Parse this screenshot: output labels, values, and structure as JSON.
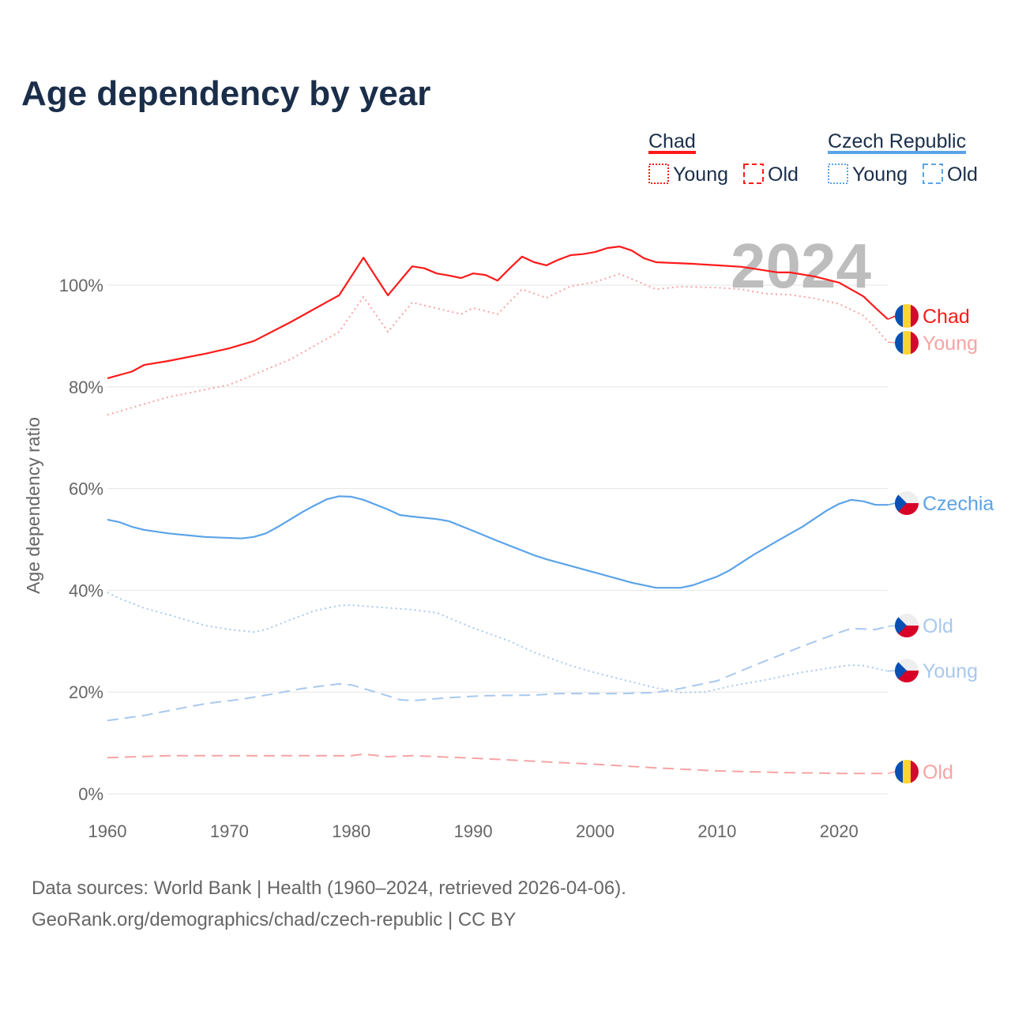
{
  "title": "Age dependency by year",
  "legend": {
    "groups": [
      {
        "name": "Chad",
        "color": "#ff1a1a",
        "items": [
          "Young",
          "Old"
        ]
      },
      {
        "name": "Czech Republic",
        "color": "#5ba3e8",
        "items": [
          "Young",
          "Old"
        ]
      }
    ]
  },
  "year_watermark": "2024",
  "source_line1": "Data sources: World Bank | Health (1960–2024, retrieved 2026-04-06).",
  "source_line2": "GeoRank.org/demographics/chad/czech-republic | CC BY",
  "chart_data": {
    "type": "line",
    "title": "Age dependency by year",
    "xlabel": "",
    "ylabel": "Age dependency ratio",
    "xlim": [
      1960,
      2024
    ],
    "ylim": [
      0,
      110
    ],
    "x_ticks": [
      "1960",
      "1970",
      "1980",
      "1990",
      "2000",
      "2010",
      "2020"
    ],
    "y_ticks": [
      "0%",
      "20%",
      "40%",
      "60%",
      "80%",
      "100%"
    ],
    "y_tick_values": [
      0,
      20,
      40,
      60,
      80,
      100
    ],
    "grid": true,
    "legend_position": "top-right",
    "series": [
      {
        "name": "Chad",
        "end_label": "Chad",
        "country": "chad",
        "style": "solid",
        "color": "#ff1a1a",
        "points": [
          [
            1960,
            81.7
          ],
          [
            1962,
            83
          ],
          [
            1963,
            84.3
          ],
          [
            1965,
            85.1
          ],
          [
            1968,
            86.5
          ],
          [
            1970,
            87.6
          ],
          [
            1972,
            89
          ],
          [
            1975,
            92.7
          ],
          [
            1978,
            96.7
          ],
          [
            1979,
            98
          ],
          [
            1981,
            105.4
          ],
          [
            1982,
            101.7
          ],
          [
            1983,
            98
          ],
          [
            1985,
            103.7
          ],
          [
            1986,
            103.3
          ],
          [
            1987,
            102.3
          ],
          [
            1988,
            101.9
          ],
          [
            1989,
            101.4
          ],
          [
            1990,
            102.3
          ],
          [
            1991,
            102
          ],
          [
            1992,
            100.9
          ],
          [
            1993,
            103.3
          ],
          [
            1994,
            105.6
          ],
          [
            1995,
            104.5
          ],
          [
            1996,
            103.9
          ],
          [
            1997,
            105
          ],
          [
            1998,
            105.9
          ],
          [
            1999,
            106.1
          ],
          [
            2000,
            106.5
          ],
          [
            2001,
            107.3
          ],
          [
            2002,
            107.6
          ],
          [
            2003,
            106.8
          ],
          [
            2004,
            105.3
          ],
          [
            2005,
            104.5
          ],
          [
            2008,
            104.2
          ],
          [
            2010,
            103.9
          ],
          [
            2012,
            103.6
          ],
          [
            2015,
            102.5
          ],
          [
            2016,
            102.5
          ],
          [
            2018,
            101.7
          ],
          [
            2020,
            100.5
          ],
          [
            2022,
            97.8
          ],
          [
            2023,
            95.5
          ],
          [
            2024,
            93.3
          ]
        ]
      },
      {
        "name": "Chad Young",
        "end_label": "Young",
        "country": "chad",
        "style": "dotted",
        "color": "#f7a3a3",
        "points": [
          [
            1960,
            74.5
          ],
          [
            1965,
            78
          ],
          [
            1970,
            80.4
          ],
          [
            1975,
            85.4
          ],
          [
            1979,
            90.8
          ],
          [
            1981,
            97.7
          ],
          [
            1983,
            90.8
          ],
          [
            1985,
            96.6
          ],
          [
            1989,
            94.3
          ],
          [
            1990,
            95.5
          ],
          [
            1992,
            94.3
          ],
          [
            1994,
            99.2
          ],
          [
            1996,
            97.5
          ],
          [
            1998,
            99.8
          ],
          [
            2000,
            100.6
          ],
          [
            2002,
            102.2
          ],
          [
            2004,
            100.2
          ],
          [
            2005,
            99.2
          ],
          [
            2007,
            99.7
          ],
          [
            2010,
            99.5
          ],
          [
            2012,
            99.2
          ],
          [
            2014,
            98.3
          ],
          [
            2016,
            98.1
          ],
          [
            2018,
            97.4
          ],
          [
            2020,
            96.3
          ],
          [
            2022,
            94
          ],
          [
            2023,
            91.6
          ],
          [
            2024,
            88.8
          ]
        ]
      },
      {
        "name": "Chad Old",
        "end_label": "Old",
        "country": "chad",
        "style": "dashed",
        "color": "#f7a3a3",
        "points": [
          [
            1960,
            7.1
          ],
          [
            1965,
            7.5
          ],
          [
            1980,
            7.5
          ],
          [
            1981,
            7.8
          ],
          [
            1983,
            7.3
          ],
          [
            1985,
            7.5
          ],
          [
            1990,
            7
          ],
          [
            1995,
            6.4
          ],
          [
            2000,
            5.8
          ],
          [
            2005,
            5.1
          ],
          [
            2010,
            4.5
          ],
          [
            2015,
            4.2
          ],
          [
            2020,
            4
          ],
          [
            2024,
            4
          ]
        ]
      },
      {
        "name": "Czechia",
        "end_label": "Czechia",
        "country": "czech",
        "style": "solid",
        "color": "#5ba3e8",
        "points": [
          [
            1960,
            53.9
          ],
          [
            1961,
            53.4
          ],
          [
            1962,
            52.5
          ],
          [
            1963,
            51.9
          ],
          [
            1965,
            51.2
          ],
          [
            1968,
            50.5
          ],
          [
            1971,
            50.2
          ],
          [
            1972,
            50.5
          ],
          [
            1973,
            51.2
          ],
          [
            1974,
            52.5
          ],
          [
            1976,
            55.4
          ],
          [
            1977,
            56.7
          ],
          [
            1978,
            57.9
          ],
          [
            1979,
            58.5
          ],
          [
            1980,
            58.4
          ],
          [
            1981,
            57.8
          ],
          [
            1983,
            55.9
          ],
          [
            1984,
            54.8
          ],
          [
            1985,
            54.5
          ],
          [
            1987,
            54
          ],
          [
            1988,
            53.6
          ],
          [
            1990,
            51.7
          ],
          [
            1992,
            49.7
          ],
          [
            1995,
            46.9
          ],
          [
            1996,
            46.1
          ],
          [
            2000,
            43.5
          ],
          [
            2003,
            41.5
          ],
          [
            2005,
            40.5
          ],
          [
            2007,
            40.5
          ],
          [
            2008,
            41
          ],
          [
            2010,
            42.7
          ],
          [
            2011,
            43.9
          ],
          [
            2013,
            47
          ],
          [
            2015,
            49.8
          ],
          [
            2017,
            52.5
          ],
          [
            2019,
            55.7
          ],
          [
            2020,
            57
          ],
          [
            2021,
            57.8
          ],
          [
            2022,
            57.5
          ],
          [
            2023,
            56.8
          ],
          [
            2024,
            56.8
          ]
        ]
      },
      {
        "name": "Czechia Old",
        "end_label": "Old",
        "country": "czech",
        "style": "dashed",
        "color": "#a8c8ee",
        "points": [
          [
            1960,
            14.4
          ],
          [
            1963,
            15.4
          ],
          [
            1966,
            16.8
          ],
          [
            1968,
            17.7
          ],
          [
            1971,
            18.6
          ],
          [
            1973,
            19.4
          ],
          [
            1976,
            20.7
          ],
          [
            1979,
            21.6
          ],
          [
            1980,
            21.4
          ],
          [
            1982,
            20
          ],
          [
            1984,
            18.5
          ],
          [
            1985,
            18.3
          ],
          [
            1988,
            18.9
          ],
          [
            1991,
            19.3
          ],
          [
            1995,
            19.4
          ],
          [
            1997,
            19.7
          ],
          [
            2002,
            19.7
          ],
          [
            2005,
            19.9
          ],
          [
            2007,
            20.7
          ],
          [
            2010,
            22.2
          ],
          [
            2013,
            25.2
          ],
          [
            2017,
            29
          ],
          [
            2020,
            31.7
          ],
          [
            2021,
            32.5
          ],
          [
            2023,
            32.3
          ],
          [
            2024,
            32.9
          ]
        ]
      },
      {
        "name": "Czechia Young",
        "end_label": "Young",
        "country": "czech",
        "style": "dotted",
        "color": "#a8c8ee",
        "points": [
          [
            1960,
            39.6
          ],
          [
            1961,
            38.4
          ],
          [
            1963,
            36.5
          ],
          [
            1965,
            35.2
          ],
          [
            1968,
            33.1
          ],
          [
            1970,
            32.3
          ],
          [
            1972,
            31.8
          ],
          [
            1973,
            32.3
          ],
          [
            1975,
            34.2
          ],
          [
            1977,
            36
          ],
          [
            1979,
            37
          ],
          [
            1980,
            37.1
          ],
          [
            1985,
            36.2
          ],
          [
            1987,
            35.6
          ],
          [
            1988,
            34.6
          ],
          [
            1990,
            32.6
          ],
          [
            1993,
            30
          ],
          [
            1995,
            27.8
          ],
          [
            1998,
            25.2
          ],
          [
            2000,
            23.8
          ],
          [
            2003,
            22
          ],
          [
            2005,
            20.8
          ],
          [
            2007,
            19.9
          ],
          [
            2009,
            20
          ],
          [
            2011,
            21.1
          ],
          [
            2014,
            22.4
          ],
          [
            2017,
            23.9
          ],
          [
            2020,
            25
          ],
          [
            2021,
            25.3
          ],
          [
            2022,
            25.2
          ],
          [
            2024,
            24.1
          ]
        ]
      }
    ]
  }
}
